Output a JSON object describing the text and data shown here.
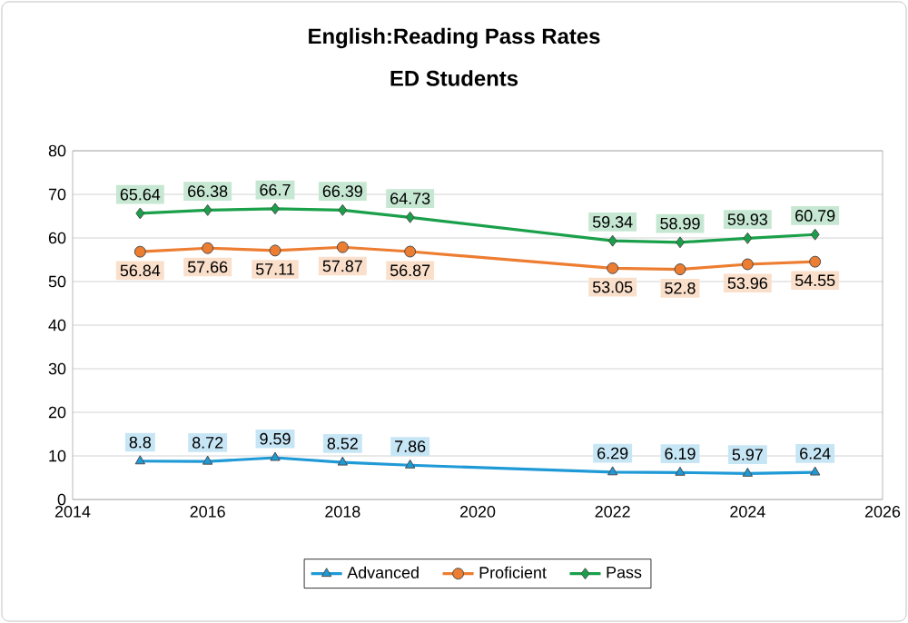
{
  "chart_data": {
    "type": "line",
    "title": "English:Reading Pass Rates",
    "subtitle": "ED Students",
    "x": [
      2015,
      2016,
      2017,
      2018,
      2019,
      2022,
      2023,
      2024,
      2025
    ],
    "series": [
      {
        "name": "Advanced",
        "color": "#1f9ad6",
        "marker": "triangle",
        "values": [
          8.8,
          8.72,
          9.59,
          8.52,
          7.86,
          6.29,
          6.19,
          5.97,
          6.24
        ]
      },
      {
        "name": "Proficient",
        "color": "#ed7d31",
        "marker": "circle",
        "values": [
          56.84,
          57.66,
          57.11,
          57.87,
          56.87,
          53.05,
          52.8,
          53.96,
          54.55
        ]
      },
      {
        "name": "Pass",
        "color": "#1aa04a",
        "marker": "diamond",
        "values": [
          65.64,
          66.38,
          66.7,
          66.39,
          64.73,
          59.34,
          58.99,
          59.93,
          60.79
        ]
      }
    ],
    "xlim": [
      2014,
      2026
    ],
    "xticks": [
      2014,
      2016,
      2018,
      2020,
      2022,
      2024,
      2026
    ],
    "ylim": [
      0,
      80
    ],
    "yticks": [
      0,
      10,
      20,
      30,
      40,
      50,
      60,
      70,
      80
    ],
    "grid": "y",
    "legend": "bottom",
    "data_labels": true,
    "line_style": "solid"
  }
}
